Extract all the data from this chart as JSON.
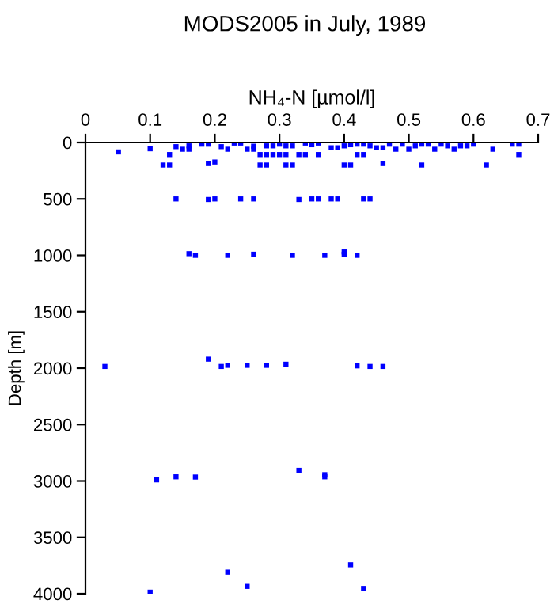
{
  "chart_data": {
    "type": "scatter",
    "title": "MODS2005 in July, 1989",
    "xlabel": "NH₄-N [µmol/l]",
    "ylabel": "Depth [m]",
    "xlim": [
      0,
      0.7
    ],
    "xticks": [
      0,
      0.1,
      0.2,
      0.3,
      0.4,
      0.5,
      0.6,
      {
        "value": 0.7,
        "label": "0.7"
      }
    ],
    "ylim": [
      4000,
      0
    ],
    "yticks": [
      0,
      500,
      1000,
      1500,
      2000,
      2500,
      3000,
      3500,
      4000
    ],
    "grid": false,
    "marker": "square",
    "series": [
      {
        "color": "#0000ff",
        "x": [
          0.051,
          0.1,
          0.12,
          0.13,
          0.13,
          0.14,
          0.15,
          0.16,
          0.16,
          0.18,
          0.19,
          0.19,
          0.2,
          0.21,
          0.22,
          0.23,
          0.24,
          0.25,
          0.26,
          0.26,
          0.27,
          0.28,
          0.29,
          0.3,
          0.31,
          0.27,
          0.28,
          0.28,
          0.29,
          0.3,
          0.31,
          0.32,
          0.31,
          0.32,
          0.33,
          0.34,
          0.34,
          0.35,
          0.36,
          0.36,
          0.38,
          0.39,
          0.4,
          0.41,
          0.4,
          0.41,
          0.42,
          0.43,
          0.44,
          0.45,
          0.46,
          0.42,
          0.43,
          0.46,
          0.47,
          0.48,
          0.49,
          0.5,
          0.51,
          0.52,
          0.53,
          0.52,
          0.54,
          0.55,
          0.56,
          0.57,
          0.58,
          0.59,
          0.6,
          0.62,
          0.63,
          0.66,
          0.67,
          0.67,
          0.14,
          0.19,
          0.2,
          0.24,
          0.26,
          0.33,
          0.35,
          0.36,
          0.38,
          0.39,
          0.43,
          0.44,
          0.16,
          0.17,
          0.22,
          0.26,
          0.32,
          0.37,
          0.4,
          0.4,
          0.42,
          0.03,
          0.19,
          0.21,
          0.22,
          0.25,
          0.28,
          0.31,
          0.42,
          0.44,
          0.46,
          0.11,
          0.14,
          0.17,
          0.33,
          0.37,
          0.37,
          0.22,
          0.25,
          0.41,
          0.43,
          0.1
        ],
        "values": [
          84,
          56,
          200,
          200,
          107,
          37,
          60,
          60,
          30,
          15,
          15,
          187,
          173,
          37,
          60,
          5,
          5,
          60,
          60,
          33,
          107,
          107,
          107,
          107,
          107,
          200,
          200,
          30,
          30,
          15,
          30,
          30,
          200,
          200,
          107,
          107,
          5,
          20,
          5,
          107,
          47,
          47,
          200,
          200,
          30,
          20,
          15,
          15,
          30,
          47,
          47,
          107,
          107,
          187,
          15,
          60,
          15,
          60,
          30,
          15,
          15,
          200,
          60,
          15,
          30,
          60,
          30,
          30,
          15,
          200,
          60,
          15,
          15,
          107,
          500,
          505,
          500,
          500,
          500,
          505,
          500,
          500,
          500,
          500,
          500,
          500,
          985,
          1000,
          1000,
          990,
          1000,
          1000,
          970,
          990,
          1000,
          1985,
          1920,
          1985,
          1975,
          1975,
          1975,
          1965,
          1980,
          1985,
          1985,
          2990,
          2963,
          2965,
          2906,
          2944,
          2963,
          3808,
          3935,
          3743,
          3953,
          3986
        ]
      }
    ]
  }
}
